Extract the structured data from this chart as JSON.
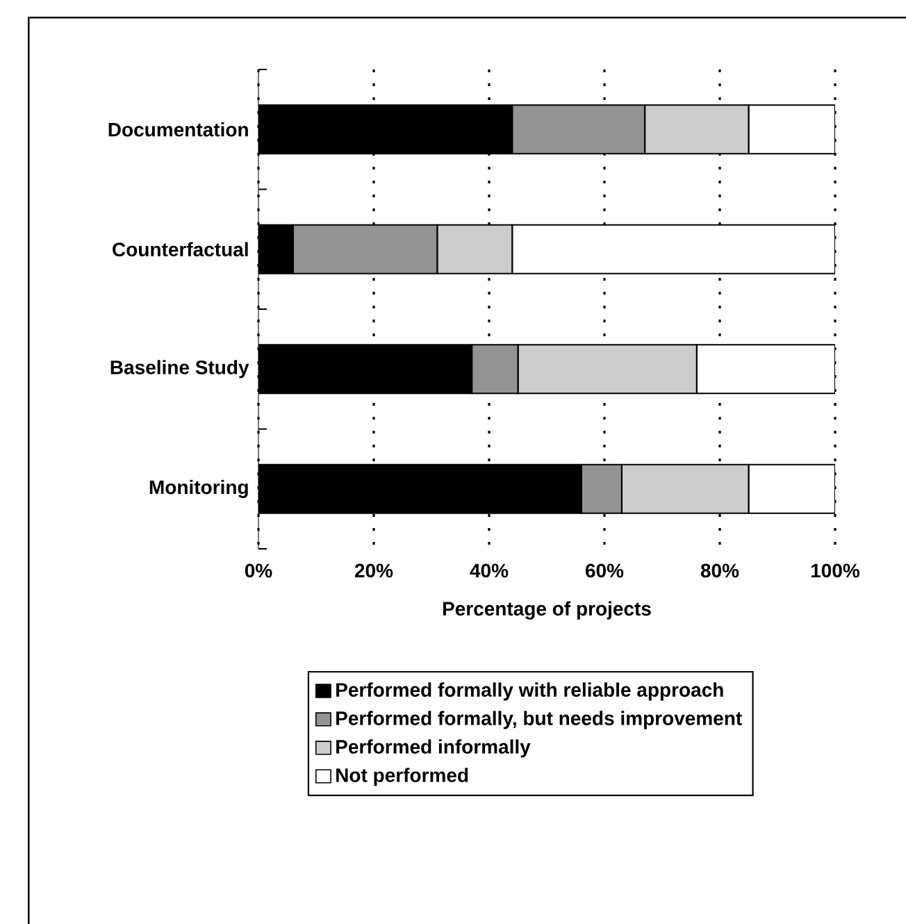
{
  "chart_data": {
    "type": "bar",
    "orientation": "horizontal",
    "stacked": true,
    "categories": [
      "Documentation",
      "Counterfactual",
      "Baseline Study",
      "Monitoring"
    ],
    "series": [
      {
        "name": "Performed formally with reliable approach",
        "color": "#000000",
        "values": [
          44,
          6,
          37,
          56
        ]
      },
      {
        "name": "Performed formally, but needs improvement",
        "color": "#939393",
        "values": [
          23,
          25,
          8,
          7
        ]
      },
      {
        "name": "Performed informally",
        "color": "#cccccc",
        "values": [
          18,
          13,
          31,
          22
        ]
      },
      {
        "name": "Not performed",
        "color": "#ffffff",
        "values": [
          15,
          56,
          24,
          15
        ]
      }
    ],
    "xlim": [
      0,
      100
    ],
    "xticks": [
      {
        "value": 0,
        "label": "0%"
      },
      {
        "value": 20,
        "label": "20%"
      },
      {
        "value": 40,
        "label": "40%"
      },
      {
        "value": 60,
        "label": "60%"
      },
      {
        "value": 80,
        "label": "80%"
      },
      {
        "value": 100,
        "label": "100%"
      }
    ],
    "xlabel": "Percentage of projects",
    "grid": "x",
    "legend": "bottom"
  }
}
